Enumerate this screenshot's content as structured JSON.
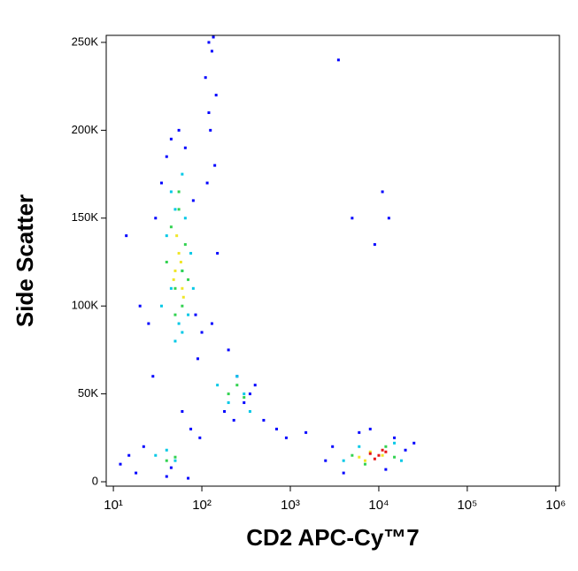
{
  "chart_data": {
    "type": "scatter",
    "x_label": "CD2 APC-Cy™7",
    "y_label": "Side Scatter",
    "xscale": "log",
    "xlim": [
      8.3,
      1100000
    ],
    "xticks": [
      {
        "value": 10,
        "label": "10¹"
      },
      {
        "value": 100,
        "label": "10²"
      },
      {
        "value": 1000,
        "label": "10³"
      },
      {
        "value": 10000,
        "label": "10⁴"
      },
      {
        "value": 100000,
        "label": "10⁵"
      },
      {
        "value": 1000000,
        "label": "10⁶"
      }
    ],
    "ylim": [
      -2500,
      254000
    ],
    "yticks": [
      0,
      {
        "value": 50000,
        "label": "50K"
      },
      {
        "value": 100000,
        "label": "100K"
      },
      {
        "value": 150000,
        "label": "150K"
      },
      {
        "value": 200000,
        "label": "200K"
      },
      {
        "value": 250000,
        "label": "250K"
      }
    ],
    "series": [
      {
        "color": "#0000ff",
        "x": [
          12,
          15,
          18,
          22,
          25,
          30,
          35,
          40,
          45,
          55,
          65,
          80,
          90,
          110,
          120,
          130,
          140,
          150,
          200,
          250,
          300,
          400,
          500,
          700,
          900,
          1500,
          2500,
          3000,
          4000,
          6000,
          8000,
          12000,
          15000,
          20000,
          25000,
          3500,
          5000,
          9000,
          11000,
          13000,
          14,
          20,
          28,
          60,
          75,
          95,
          130,
          180,
          230,
          350,
          40,
          45,
          70,
          85,
          100,
          120,
          135,
          145,
          125,
          115
        ],
        "y": [
          10000,
          15000,
          5000,
          20000,
          90000,
          150000,
          170000,
          185000,
          195000,
          200000,
          190000,
          160000,
          70000,
          230000,
          210000,
          245000,
          180000,
          130000,
          75000,
          60000,
          45000,
          55000,
          35000,
          30000,
          25000,
          28000,
          12000,
          20000,
          5000,
          28000,
          30000,
          7000,
          25000,
          18000,
          22000,
          240000,
          150000,
          135000,
          165000,
          150000,
          140000,
          100000,
          60000,
          40000,
          30000,
          25000,
          90000,
          40000,
          35000,
          50000,
          3000,
          8000,
          2000,
          95000,
          85000,
          250000,
          253000,
          220000,
          200000,
          170000
        ]
      },
      {
        "color": "#00c8e6",
        "x": [
          35,
          40,
          45,
          50,
          55,
          60,
          65,
          70,
          75,
          45,
          50,
          60,
          150,
          200,
          250,
          300,
          350,
          30,
          40,
          50,
          4000,
          6000,
          15000,
          18000,
          60,
          80
        ],
        "y": [
          100000,
          140000,
          165000,
          155000,
          90000,
          175000,
          150000,
          95000,
          130000,
          110000,
          80000,
          85000,
          55000,
          45000,
          60000,
          50000,
          40000,
          15000,
          18000,
          12000,
          12000,
          20000,
          22000,
          12000,
          120000,
          110000
        ]
      },
      {
        "color": "#32d250",
        "x": [
          40,
          45,
          50,
          55,
          60,
          65,
          70,
          50,
          55,
          60,
          200,
          250,
          300,
          40,
          50,
          5000,
          7000,
          12000,
          15000
        ],
        "y": [
          125000,
          145000,
          110000,
          155000,
          100000,
          135000,
          115000,
          95000,
          165000,
          120000,
          50000,
          55000,
          48000,
          12000,
          14000,
          15000,
          10000,
          20000,
          14000
        ]
      },
      {
        "color": "#f0e628",
        "x": [
          50,
          55,
          60,
          52,
          58,
          62,
          48,
          6000,
          8000,
          11000,
          7000
        ],
        "y": [
          120000,
          130000,
          110000,
          140000,
          125000,
          105000,
          115000,
          14000,
          17000,
          15000,
          12000
        ]
      },
      {
        "color": "#e61414",
        "x": [
          8000,
          10000,
          12000,
          9000,
          11000
        ],
        "y": [
          16000,
          15000,
          17000,
          13000,
          18000
        ]
      }
    ]
  }
}
